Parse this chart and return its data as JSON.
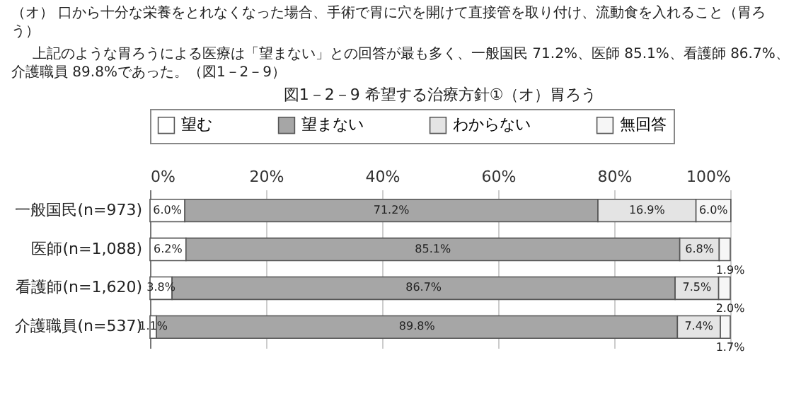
{
  "chart_data": {
    "type": "bar",
    "orientation": "horizontal",
    "stacked": true,
    "title": "図1－2－9 希望する治療方針①（オ）胃ろう",
    "annotations": [
      "（オ） 口から十分な栄養をとれなくなった場合、手術で胃に穴を開けて直接管を取り付け、流動食を入れること（胃ろう）",
      "上記のような胃ろうによる医療は「望まない」との回答が最も多く、一般国民 71.2%、医師 85.1%、看護師 86.7%、介護職員 89.8%であった。（図1－2－9）"
    ],
    "categories": [
      "一般国民(n=973)",
      "医師(n=1,088)",
      "看護師(n=1,620)",
      "介護職員(n=537)"
    ],
    "series": [
      {
        "name": "望む",
        "color": "#ffffff",
        "values": [
          6.0,
          6.2,
          3.8,
          1.1
        ],
        "value_labels": [
          "6.0%",
          "6.2%",
          "3.8%",
          "1.1%"
        ]
      },
      {
        "name": "望まない",
        "color": "#a6a6a6",
        "values": [
          71.2,
          85.1,
          86.7,
          89.8
        ],
        "value_labels": [
          "71.2%",
          "85.1%",
          "86.7%",
          "89.8%"
        ]
      },
      {
        "name": "わからない",
        "color": "#e4e4e4",
        "values": [
          16.9,
          6.8,
          7.5,
          7.4
        ],
        "value_labels": [
          "16.9%",
          "6.8%",
          "7.5%",
          "7.4%"
        ]
      },
      {
        "name": "無回答",
        "color": "#f6f6f6",
        "values": [
          6.0,
          1.9,
          2.0,
          1.7
        ],
        "value_labels": [
          "6.0%",
          "1.9%",
          "2.0%",
          "1.7%"
        ]
      }
    ],
    "xlim": [
      0,
      100
    ],
    "xticks": [
      {
        "value": 0,
        "label": "0%"
      },
      {
        "value": 20,
        "label": "20%"
      },
      {
        "value": 40,
        "label": "40%"
      },
      {
        "value": 60,
        "label": "60%"
      },
      {
        "value": 80,
        "label": "80%"
      },
      {
        "value": 100,
        "label": "100%"
      }
    ],
    "grid": "x",
    "legend": "top"
  }
}
